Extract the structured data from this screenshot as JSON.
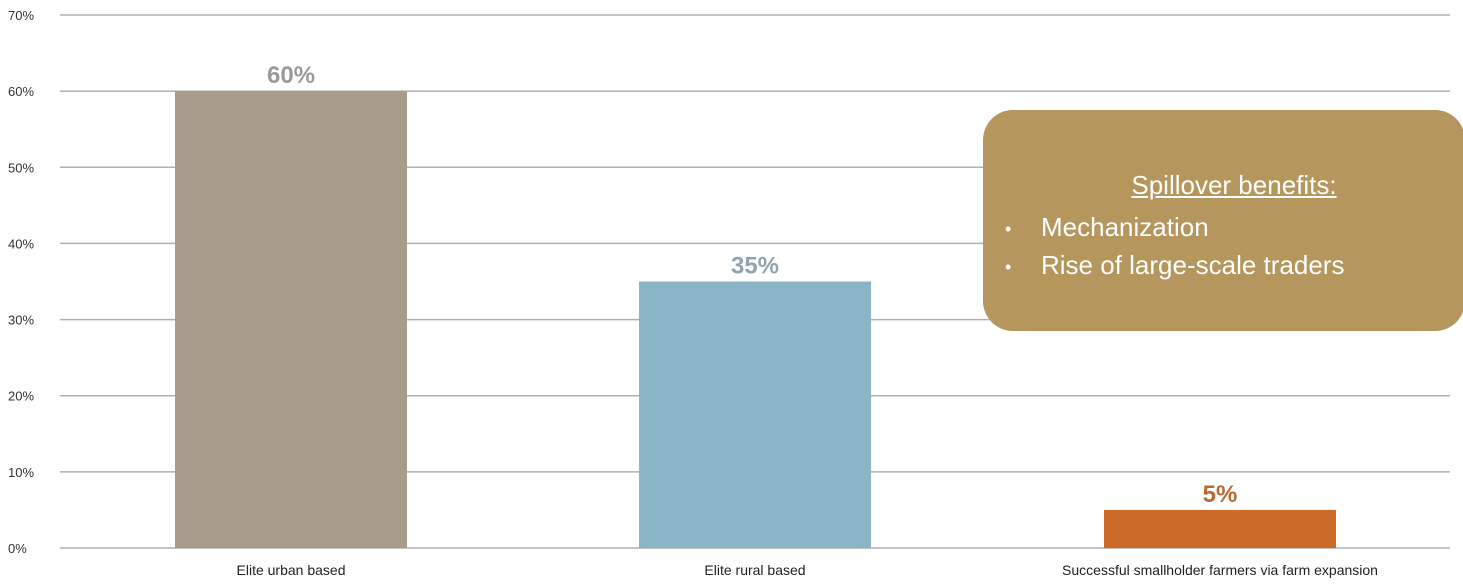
{
  "chart_data": {
    "type": "bar",
    "categories": [
      "Elite urban based",
      "Elite rural based",
      "Successful smallholder farmers via farm expansion"
    ],
    "values": [
      60,
      35,
      5
    ],
    "data_labels": [
      "60%",
      "35%",
      "5%"
    ],
    "y_ticks": [
      "0%",
      "10%",
      "20%",
      "30%",
      "40%",
      "50%",
      "60%",
      "70%"
    ],
    "ylim": [
      0,
      70
    ],
    "grid": true,
    "title": "",
    "xlabel": "",
    "ylabel": "",
    "bar_colors": [
      "#a89c8c",
      "#8ab5c6",
      "#cc6b27"
    ],
    "label_colors": [
      "#9a9a9a",
      "#8fa4ae",
      "#b86a35"
    ],
    "gridline_color": "#b0b0b0"
  },
  "callout": {
    "title": "Spillover benefits:",
    "items": [
      "Mechanization",
      "Rise of large-scale traders"
    ],
    "background": "#b5965c",
    "bullet_char": "•"
  }
}
